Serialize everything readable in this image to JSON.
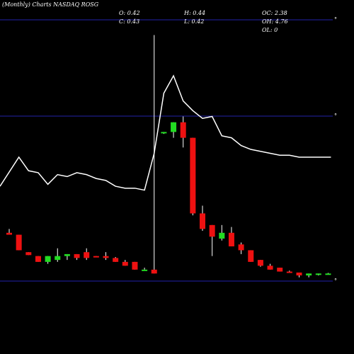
{
  "chart_data": {
    "type": "candlestick",
    "title": "(Monthly) Charts NASDAQ ROSG",
    "ohlc_readout": {
      "o": "O: 0.42",
      "h": "H: 0.44",
      "oc": "OC: 2.38",
      "c": "C: 0.43",
      "l": "L: 0.42",
      "oh": "OH: 4.76",
      "ol": "OL: 0"
    },
    "colors": {
      "up": "#22dd22",
      "down": "#ee1111",
      "line": "#ffffff",
      "grid": "#2222aa",
      "background": "#000000"
    },
    "candles": [
      {
        "o": 96,
        "h": 98,
        "l": 95,
        "c": 95
      },
      {
        "o": 95,
        "h": 95,
        "l": 87,
        "c": 87
      },
      {
        "o": 86,
        "h": 86,
        "l": 84.5,
        "c": 84.5
      },
      {
        "o": 84,
        "h": 84,
        "l": 81,
        "c": 81
      },
      {
        "o": 81,
        "h": 84,
        "l": 80,
        "c": 84
      },
      {
        "o": 82,
        "h": 88,
        "l": 81,
        "c": 84
      },
      {
        "o": 84,
        "h": 85,
        "l": 82,
        "c": 85
      },
      {
        "o": 85,
        "h": 85,
        "l": 82,
        "c": 83
      },
      {
        "o": 86,
        "h": 88,
        "l": 82,
        "c": 83
      },
      {
        "o": 84,
        "h": 84,
        "l": 83.5,
        "c": 83.5
      },
      {
        "o": 84,
        "h": 86,
        "l": 82,
        "c": 83
      },
      {
        "o": 83,
        "h": 83.5,
        "l": 81,
        "c": 81
      },
      {
        "o": 81,
        "h": 82,
        "l": 79,
        "c": 79
      },
      {
        "o": 81,
        "h": 81,
        "l": 77,
        "c": 77
      },
      {
        "o": 77,
        "h": 78,
        "l": 77,
        "c": 77
      },
      {
        "o": 77,
        "h": 198,
        "l": 75,
        "c": 75
      },
      {
        "o": 148,
        "h": 148,
        "l": 147,
        "c": 148
      },
      {
        "o": 148,
        "h": 153,
        "l": 145,
        "c": 153
      },
      {
        "o": 153,
        "h": 156,
        "l": 140,
        "c": 145
      },
      {
        "o": 145,
        "h": 145,
        "l": 105,
        "c": 106
      },
      {
        "o": 106,
        "h": 110,
        "l": 97,
        "c": 98
      },
      {
        "o": 100,
        "h": 100,
        "l": 84,
        "c": 94
      },
      {
        "o": 93,
        "h": 100,
        "l": 92,
        "c": 96
      },
      {
        "o": 96,
        "h": 99,
        "l": 89,
        "c": 89
      },
      {
        "o": 90,
        "h": 91,
        "l": 85,
        "c": 87
      },
      {
        "o": 87,
        "h": 87,
        "l": 81,
        "c": 81
      },
      {
        "o": 82,
        "h": 82,
        "l": 78.5,
        "c": 79
      },
      {
        "o": 79,
        "h": 80,
        "l": 77,
        "c": 77
      },
      {
        "o": 78,
        "h": 78,
        "l": 76,
        "c": 76
      },
      {
        "o": 76,
        "h": 76.5,
        "l": 75.5,
        "c": 75.5
      },
      {
        "o": 75.5,
        "h": 75.5,
        "l": 73,
        "c": 74
      },
      {
        "o": 74,
        "h": 75,
        "l": 73,
        "c": 75
      },
      {
        "o": 74.5,
        "h": 75,
        "l": 74,
        "c": 75
      },
      {
        "o": 75,
        "h": 75.3,
        "l": 74.8,
        "c": 75
      }
    ],
    "line_series": [
      120,
      135,
      128,
      127,
      121,
      126,
      125,
      127,
      126,
      124,
      123,
      120,
      119,
      119,
      118,
      137,
      168,
      177,
      164,
      159,
      155,
      156,
      146,
      145,
      141,
      139,
      138,
      137,
      136,
      136,
      135,
      135,
      135,
      135
    ]
  }
}
